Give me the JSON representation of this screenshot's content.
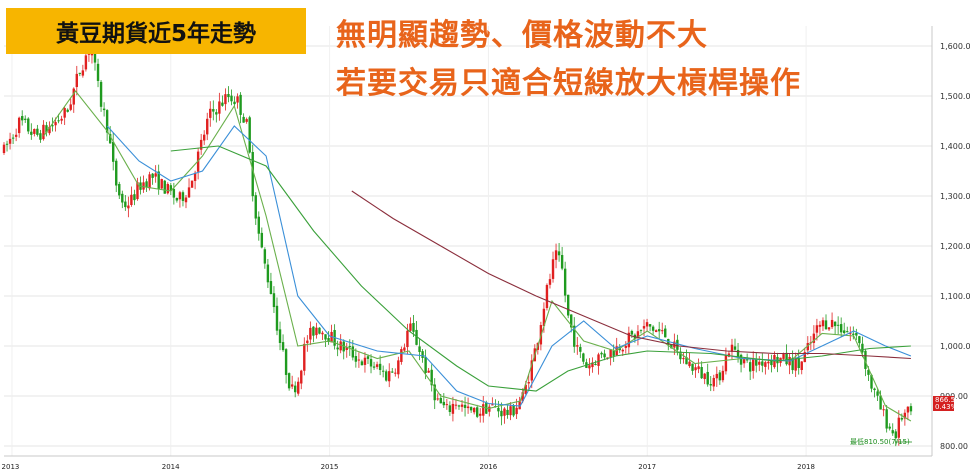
{
  "header": {
    "title": "黃豆期貨近5年走勢",
    "headline_1": "無明顯趨勢、價格波動不大",
    "headline_2": "若要交易只適合短線放大槓桿操作"
  },
  "colors": {
    "title_bg": "#f7b500",
    "headline": "#e8641b",
    "up_candle": "#e02020",
    "down_candle": "#1f9a1f",
    "ma_short": "#6ab04c",
    "ma_mid": "#3a8fd8",
    "ma_long": "#3aa03a",
    "ma_200": "#8b2e3c",
    "grid": "#e4e4e4"
  },
  "chart_data": {
    "type": "candlestick",
    "instrument": "Soybean futures",
    "y_axis": {
      "min": 780,
      "max": 1640,
      "ticks": [
        800,
        900,
        1000,
        1100,
        1200,
        1300,
        1400,
        1500,
        1600
      ],
      "tick_labels": [
        "800.00",
        "900.00",
        "1,000.00",
        "1,100.00",
        "1,200.00",
        "1,300.00",
        "1,400.00",
        "1,500.00",
        "1,600.00"
      ]
    },
    "x_axis": {
      "start": 2012.95,
      "end": 2018.78,
      "year_labels": [
        {
          "t": 2013.0,
          "label": "012 2013"
        },
        {
          "t": 2014.0,
          "label": "2014"
        },
        {
          "t": 2015.0,
          "label": "2015"
        },
        {
          "t": 2016.0,
          "label": "2016"
        },
        {
          "t": 2017.0,
          "label": "2017"
        },
        {
          "t": 2018.0,
          "label": "2018"
        }
      ]
    },
    "price_path": [
      [
        2012.95,
        1390
      ],
      [
        2013.05,
        1450
      ],
      [
        2013.15,
        1420
      ],
      [
        2013.25,
        1440
      ],
      [
        2013.35,
        1470
      ],
      [
        2013.42,
        1545
      ],
      [
        2013.47,
        1585
      ],
      [
        2013.5,
        1600
      ],
      [
        2013.55,
        1500
      ],
      [
        2013.6,
        1440
      ],
      [
        2013.65,
        1330
      ],
      [
        2013.7,
        1280
      ],
      [
        2013.75,
        1290
      ],
      [
        2013.8,
        1320
      ],
      [
        2013.88,
        1340
      ],
      [
        2013.95,
        1320
      ],
      [
        2014.05,
        1290
      ],
      [
        2014.12,
        1320
      ],
      [
        2014.18,
        1390
      ],
      [
        2014.24,
        1460
      ],
      [
        2014.3,
        1480
      ],
      [
        2014.36,
        1500
      ],
      [
        2014.42,
        1490
      ],
      [
        2014.48,
        1440
      ],
      [
        2014.52,
        1300
      ],
      [
        2014.56,
        1210
      ],
      [
        2014.6,
        1150
      ],
      [
        2014.64,
        1100
      ],
      [
        2014.68,
        1020
      ],
      [
        2014.72,
        960
      ],
      [
        2014.76,
        910
      ],
      [
        2014.8,
        930
      ],
      [
        2014.85,
        1010
      ],
      [
        2014.92,
        1040
      ],
      [
        2015.0,
        1020
      ],
      [
        2015.06,
        1000
      ],
      [
        2015.12,
        990
      ],
      [
        2015.2,
        970
      ],
      [
        2015.28,
        960
      ],
      [
        2015.36,
        940
      ],
      [
        2015.44,
        970
      ],
      [
        2015.5,
        1040
      ],
      [
        2015.56,
        1000
      ],
      [
        2015.62,
        940
      ],
      [
        2015.68,
        890
      ],
      [
        2015.74,
        870
      ],
      [
        2015.8,
        890
      ],
      [
        2015.86,
        870
      ],
      [
        2015.92,
        865
      ],
      [
        2016.0,
        880
      ],
      [
        2016.08,
        870
      ],
      [
        2016.14,
        865
      ],
      [
        2016.22,
        900
      ],
      [
        2016.3,
        1000
      ],
      [
        2016.36,
        1100
      ],
      [
        2016.42,
        1180
      ],
      [
        2016.46,
        1160
      ],
      [
        2016.5,
        1060
      ],
      [
        2016.56,
        990
      ],
      [
        2016.62,
        960
      ],
      [
        2016.7,
        980
      ],
      [
        2016.78,
        990
      ],
      [
        2016.86,
        1010
      ],
      [
        2016.92,
        1020
      ],
      [
        2017.0,
        1040
      ],
      [
        2017.06,
        1030
      ],
      [
        2017.12,
        1020
      ],
      [
        2017.2,
        980
      ],
      [
        2017.28,
        960
      ],
      [
        2017.36,
        940
      ],
      [
        2017.44,
        930
      ],
      [
        2017.52,
        1000
      ],
      [
        2017.58,
        980
      ],
      [
        2017.64,
        960
      ],
      [
        2017.72,
        970
      ],
      [
        2017.8,
        975
      ],
      [
        2017.88,
        970
      ],
      [
        2017.96,
        960
      ],
      [
        2018.02,
        1000
      ],
      [
        2018.08,
        1040
      ],
      [
        2018.14,
        1050
      ],
      [
        2018.2,
        1040
      ],
      [
        2018.26,
        1030
      ],
      [
        2018.34,
        1010
      ],
      [
        2018.4,
        930
      ],
      [
        2018.46,
        880
      ],
      [
        2018.52,
        840
      ],
      [
        2018.56,
        820
      ],
      [
        2018.6,
        860
      ],
      [
        2018.66,
        866
      ]
    ],
    "moving_averages": [
      {
        "key": "ma_short",
        "points": [
          [
            2013.2,
            1420
          ],
          [
            2013.4,
            1510
          ],
          [
            2013.6,
            1430
          ],
          [
            2013.8,
            1320
          ],
          [
            2014.0,
            1310
          ],
          [
            2014.2,
            1380
          ],
          [
            2014.4,
            1480
          ],
          [
            2014.6,
            1260
          ],
          [
            2014.8,
            1000
          ],
          [
            2015.0,
            1010
          ],
          [
            2015.3,
            975
          ],
          [
            2015.5,
            990
          ],
          [
            2015.7,
            900
          ],
          [
            2016.0,
            875
          ],
          [
            2016.2,
            890
          ],
          [
            2016.4,
            1090
          ],
          [
            2016.6,
            1010
          ],
          [
            2016.8,
            990
          ],
          [
            2017.0,
            1030
          ],
          [
            2017.3,
            965
          ],
          [
            2017.6,
            975
          ],
          [
            2017.9,
            970
          ],
          [
            2018.1,
            1025
          ],
          [
            2018.3,
            1020
          ],
          [
            2018.5,
            880
          ],
          [
            2018.66,
            850
          ]
        ]
      },
      {
        "key": "ma_mid",
        "points": [
          [
            2013.6,
            1440
          ],
          [
            2013.8,
            1370
          ],
          [
            2014.0,
            1330
          ],
          [
            2014.2,
            1350
          ],
          [
            2014.4,
            1440
          ],
          [
            2014.6,
            1380
          ],
          [
            2014.8,
            1100
          ],
          [
            2015.0,
            1020
          ],
          [
            2015.3,
            990
          ],
          [
            2015.6,
            980
          ],
          [
            2015.8,
            910
          ],
          [
            2016.0,
            885
          ],
          [
            2016.2,
            880
          ],
          [
            2016.4,
            1000
          ],
          [
            2016.6,
            1050
          ],
          [
            2016.8,
            995
          ],
          [
            2017.0,
            1020
          ],
          [
            2017.3,
            995
          ],
          [
            2017.6,
            975
          ],
          [
            2017.9,
            970
          ],
          [
            2018.1,
            1000
          ],
          [
            2018.3,
            1030
          ],
          [
            2018.5,
            1000
          ],
          [
            2018.66,
            980
          ]
        ]
      },
      {
        "key": "ma_long",
        "points": [
          [
            2014.0,
            1390
          ],
          [
            2014.3,
            1400
          ],
          [
            2014.6,
            1360
          ],
          [
            2014.9,
            1230
          ],
          [
            2015.2,
            1120
          ],
          [
            2015.5,
            1030
          ],
          [
            2015.8,
            960
          ],
          [
            2016.0,
            920
          ],
          [
            2016.3,
            910
          ],
          [
            2016.5,
            950
          ],
          [
            2016.8,
            980
          ],
          [
            2017.0,
            990
          ],
          [
            2017.4,
            985
          ],
          [
            2017.8,
            970
          ],
          [
            2018.1,
            980
          ],
          [
            2018.4,
            995
          ],
          [
            2018.66,
            1000
          ]
        ]
      },
      {
        "key": "ma_200",
        "points": [
          [
            2015.14,
            1310
          ],
          [
            2015.4,
            1255
          ],
          [
            2015.7,
            1200
          ],
          [
            2016.0,
            1145
          ],
          [
            2016.3,
            1100
          ],
          [
            2016.6,
            1060
          ],
          [
            2016.9,
            1020
          ],
          [
            2017.2,
            1000
          ],
          [
            2017.5,
            990
          ],
          [
            2017.8,
            985
          ],
          [
            2018.1,
            985
          ],
          [
            2018.4,
            980
          ],
          [
            2018.66,
            975
          ]
        ]
      }
    ],
    "annotations": {
      "low_label": "最低810.50(7/15)",
      "last_price": "866.50",
      "last_change": "0.43%"
    }
  }
}
